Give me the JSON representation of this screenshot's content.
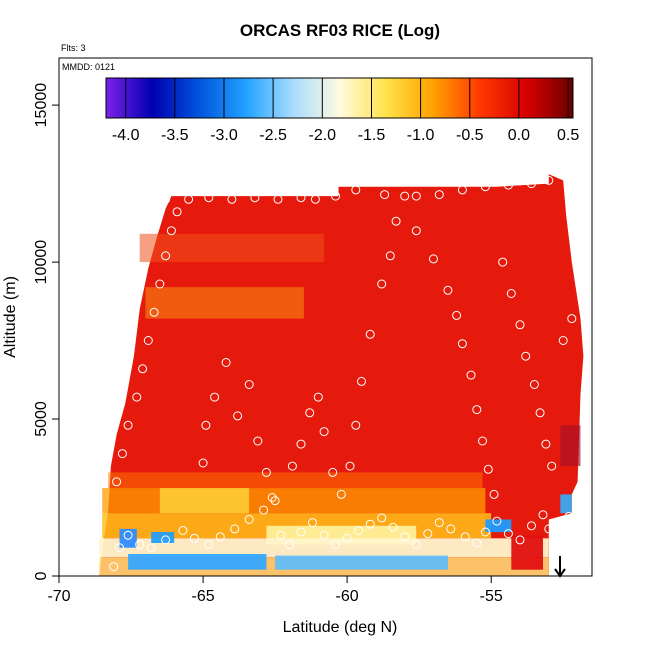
{
  "chart_data": {
    "type": "heatmap",
    "title": "ORCAS RF03 RICE (Log)",
    "subtitle": "Flts: 3",
    "annotation": "MMDD: 0121",
    "xlabel": "Latitude (deg N)",
    "ylabel": "Altitude (m)",
    "xlim": [
      -70,
      -51.5
    ],
    "ylim": [
      0,
      16500
    ],
    "xticks": [
      -70,
      -65,
      -60,
      -55
    ],
    "xtick_labels": [
      "-70",
      "-65",
      "-60",
      "-55"
    ],
    "yticks": [
      0,
      5000,
      10000,
      15000
    ],
    "ytick_labels": [
      "0",
      "5000",
      "10000",
      "15000"
    ],
    "colorbar": {
      "range": [
        -4.2,
        0.55
      ],
      "ticks": [
        -4.0,
        -3.5,
        -3.0,
        -2.5,
        -2.0,
        -1.5,
        -1.0,
        -0.5,
        0.0,
        0.5
      ],
      "tick_labels": [
        "-4.0",
        "-3.5",
        "-3.0",
        "-2.5",
        "-2.0",
        "-1.5",
        "-1.0",
        "-0.5",
        "0.0",
        "0.5"
      ],
      "colors": [
        "#7b22e8",
        "#0000b0",
        "#0055dd",
        "#22a2ff",
        "#a8dcff",
        "#fffbe0",
        "#ffe24a",
        "#ffa200",
        "#ff3a00",
        "#d80000",
        "#6b0000"
      ],
      "placement": "top-inside"
    },
    "field_color": "#e61a0c",
    "marker": {
      "shape": "open-circle",
      "color": "#ffffff"
    },
    "flight_track_points": [
      [
        -68.1,
        300
      ],
      [
        -67.9,
        900
      ],
      [
        -67.6,
        1300
      ],
      [
        -67.2,
        1000
      ],
      [
        -66.8,
        900
      ],
      [
        -66.3,
        1150
      ],
      [
        -65.7,
        1450
      ],
      [
        -65.3,
        1200
      ],
      [
        -64.8,
        1000
      ],
      [
        -64.4,
        1250
      ],
      [
        -63.9,
        1500
      ],
      [
        -63.4,
        1800
      ],
      [
        -62.9,
        2100
      ],
      [
        -62.5,
        2400
      ],
      [
        -62.3,
        1300
      ],
      [
        -62.0,
        1000
      ],
      [
        -61.6,
        1400
      ],
      [
        -61.2,
        1700
      ],
      [
        -60.8,
        1300
      ],
      [
        -60.4,
        1000
      ],
      [
        -60.0,
        1200
      ],
      [
        -59.6,
        1450
      ],
      [
        -59.2,
        1650
      ],
      [
        -58.8,
        1850
      ],
      [
        -58.4,
        1550
      ],
      [
        -58.0,
        1250
      ],
      [
        -57.6,
        1000
      ],
      [
        -57.2,
        1350
      ],
      [
        -56.8,
        1700
      ],
      [
        -56.4,
        1500
      ],
      [
        -55.9,
        1250
      ],
      [
        -55.5,
        1050
      ],
      [
        -55.2,
        1400
      ],
      [
        -54.8,
        1750
      ],
      [
        -54.4,
        1350
      ],
      [
        -54.0,
        1150
      ],
      [
        -53.6,
        1600
      ],
      [
        -53.2,
        1950
      ],
      [
        -53.0,
        1500
      ],
      [
        -52.6,
        1700
      ],
      [
        -52.3,
        1900
      ],
      [
        -65.0,
        3600
      ],
      [
        -64.9,
        4800
      ],
      [
        -64.6,
        5700
      ],
      [
        -64.2,
        6800
      ],
      [
        -63.8,
        5100
      ],
      [
        -63.4,
        6100
      ],
      [
        -63.1,
        4300
      ],
      [
        -62.8,
        3300
      ],
      [
        -62.6,
        2500
      ],
      [
        -61.9,
        3500
      ],
      [
        -61.6,
        4200
      ],
      [
        -61.3,
        5200
      ],
      [
        -61.0,
        5700
      ],
      [
        -60.8,
        4600
      ],
      [
        -60.5,
        3300
      ],
      [
        -60.2,
        2600
      ],
      [
        -59.9,
        3500
      ],
      [
        -59.7,
        4800
      ],
      [
        -59.5,
        6200
      ],
      [
        -59.2,
        7700
      ],
      [
        -58.8,
        9300
      ],
      [
        -58.5,
        10200
      ],
      [
        -58.3,
        11300
      ],
      [
        -58.0,
        12100
      ],
      [
        -66.3,
        12000
      ],
      [
        -65.5,
        12000
      ],
      [
        -64.8,
        12050
      ],
      [
        -64.0,
        12000
      ],
      [
        -63.2,
        12050
      ],
      [
        -62.4,
        12000
      ],
      [
        -61.6,
        12050
      ],
      [
        -61.1,
        12000
      ],
      [
        -60.4,
        12100
      ],
      [
        -59.7,
        12300
      ],
      [
        -58.7,
        12150
      ],
      [
        -57.6,
        12100
      ],
      [
        -56.8,
        12150
      ],
      [
        -56.0,
        12300
      ],
      [
        -55.2,
        12400
      ],
      [
        -54.4,
        12450
      ],
      [
        -53.6,
        12500
      ],
      [
        -53.0,
        12600
      ],
      [
        -57.6,
        11000
      ],
      [
        -57.0,
        10100
      ],
      [
        -56.5,
        9100
      ],
      [
        -56.2,
        8300
      ],
      [
        -56.0,
        7400
      ],
      [
        -55.7,
        6400
      ],
      [
        -55.5,
        5300
      ],
      [
        -55.3,
        4300
      ],
      [
        -55.1,
        3400
      ],
      [
        -54.9,
        2600
      ],
      [
        -54.6,
        10000
      ],
      [
        -54.3,
        9000
      ],
      [
        -54.0,
        8000
      ],
      [
        -53.8,
        7000
      ],
      [
        -53.5,
        6100
      ],
      [
        -53.3,
        5200
      ],
      [
        -53.1,
        4200
      ],
      [
        -52.9,
        3500
      ],
      [
        -52.5,
        7500
      ],
      [
        -52.2,
        8200
      ],
      [
        -68.0,
        3000
      ],
      [
        -67.8,
        3900
      ],
      [
        -67.6,
        4800
      ],
      [
        -67.3,
        5700
      ],
      [
        -67.1,
        6600
      ],
      [
        -66.9,
        7500
      ],
      [
        -66.7,
        8400
      ],
      [
        -66.5,
        9300
      ],
      [
        -66.3,
        10200
      ],
      [
        -66.1,
        11000
      ],
      [
        -65.9,
        11600
      ]
    ]
  }
}
